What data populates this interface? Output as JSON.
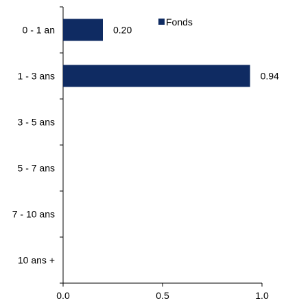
{
  "chart_data": {
    "type": "bar",
    "orientation": "horizontal",
    "categories": [
      "0 - 1 an",
      "1 - 3 ans",
      "3 - 5 ans",
      "5 - 7 ans",
      "7 - 10 ans",
      "10 ans +"
    ],
    "series": [
      {
        "name": "Fonds",
        "values": [
          0.2,
          0.94,
          0,
          0,
          0,
          0
        ],
        "data_labels": [
          "0.20",
          "0.94",
          "",
          "",
          "",
          ""
        ],
        "color": "#0f2b62"
      }
    ],
    "xlim": [
      0,
      1.0
    ],
    "x_ticks": [
      0.0,
      0.5,
      1.0
    ],
    "x_tick_labels": [
      "0.0",
      "0.5",
      "1.0"
    ],
    "title": "",
    "xlabel": "",
    "ylabel": "",
    "grid": false,
    "legend_position": "top-right"
  }
}
